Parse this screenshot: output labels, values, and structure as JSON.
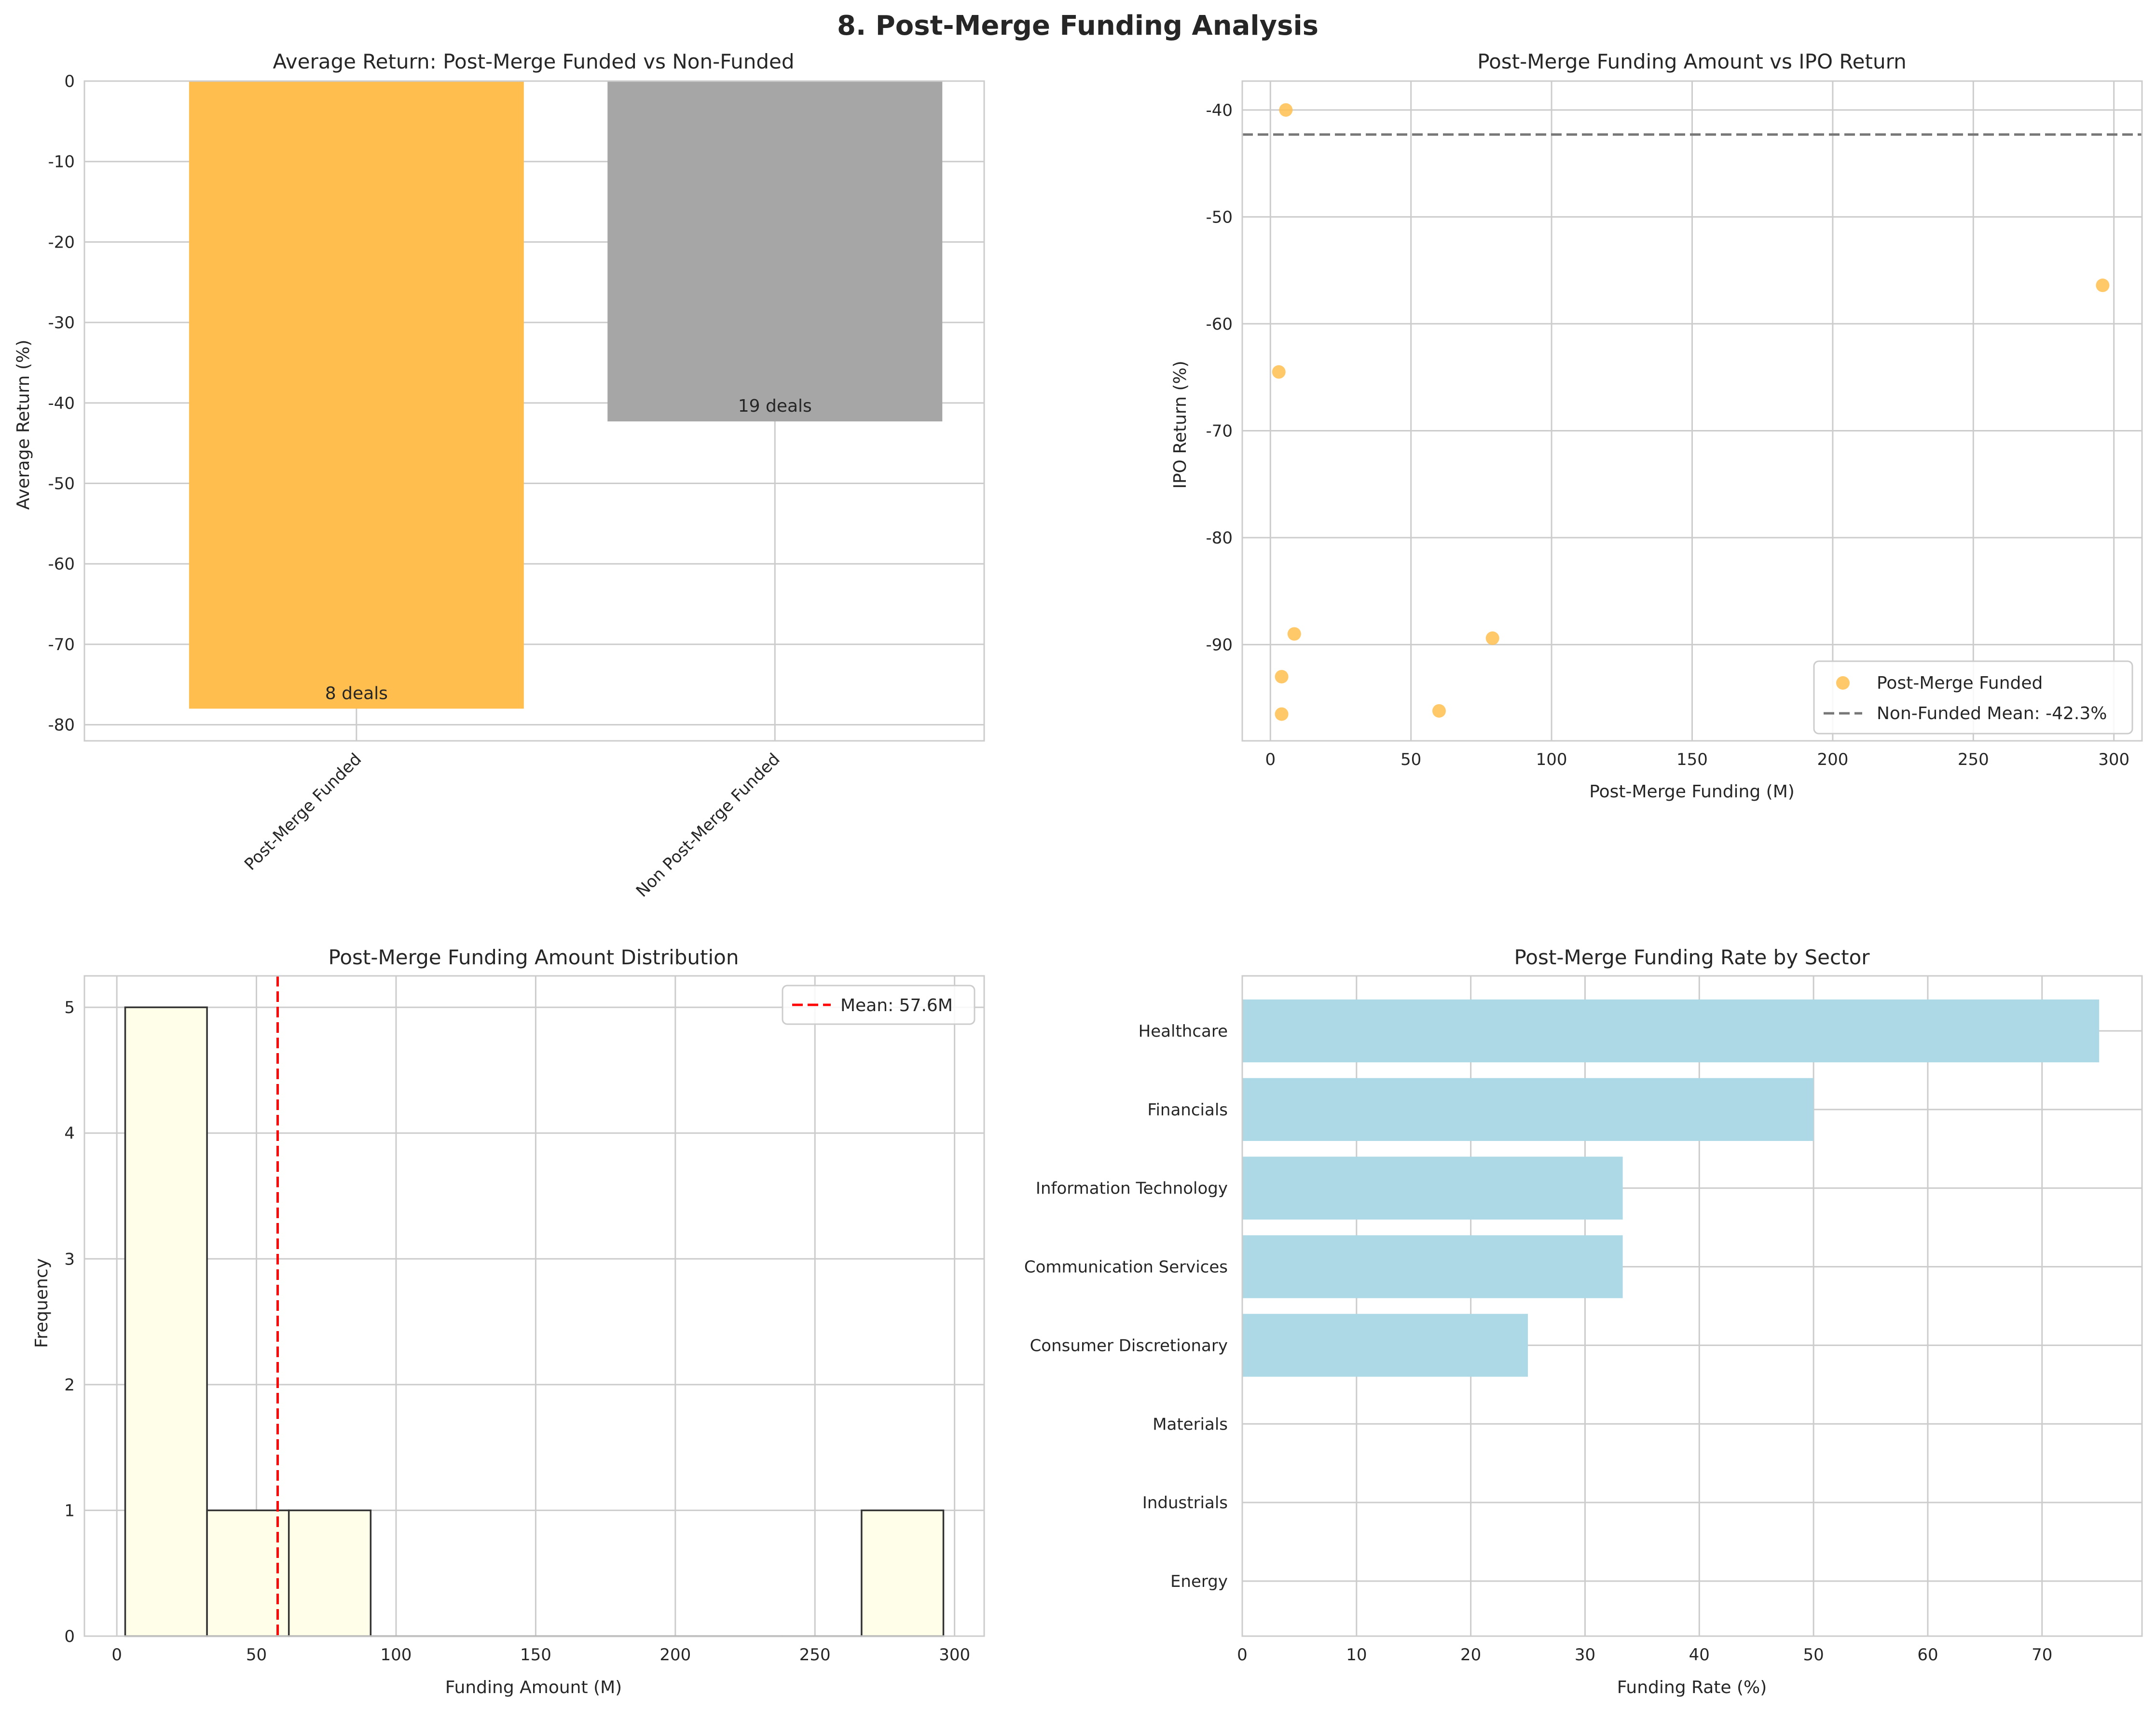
{
  "figure": {
    "title": "8. Post-Merge Funding Analysis"
  },
  "chart_data": [
    {
      "id": "avg-return",
      "type": "bar",
      "title": "Average Return: Post-Merge Funded vs Non-Funded",
      "xlabel": "",
      "ylabel": "Average Return (%)",
      "categories": [
        "Post-Merge Funded",
        "Non Post-Merge Funded"
      ],
      "values": [
        -78.0,
        -42.3
      ],
      "annotations": [
        "8 deals",
        "19 deals"
      ],
      "colors": [
        "#ffbe4d",
        "#a6a6a6"
      ],
      "ylim": [
        -82,
        0
      ],
      "yticks": [
        0,
        -10,
        -20,
        -30,
        -40,
        -50,
        -60,
        -70,
        -80
      ],
      "ytick_labels": [
        "0",
        "-10",
        "-20",
        "-30",
        "-40",
        "-50",
        "-60",
        "-70",
        "-80"
      ],
      "grid": true
    },
    {
      "id": "funding-vs-return",
      "type": "scatter",
      "title": "Post-Merge Funding Amount vs IPO Return",
      "xlabel": "Post-Merge Funding (M)",
      "ylabel": "IPO Return (%)",
      "series": [
        {
          "name": "Post-Merge Funded",
          "color": "#ffbe4d",
          "x": [
            5.5,
            3,
            8.5,
            4,
            4,
            60,
            79,
            296
          ],
          "y": [
            -40,
            -64.5,
            -89,
            -93,
            -96.5,
            -96.2,
            -89.4,
            -56.4
          ]
        }
      ],
      "hline": {
        "y": -42.3,
        "label": "Non-Funded Mean: -42.3%",
        "color": "#777777"
      },
      "xlim": [
        -10,
        310
      ],
      "ylim": [
        -99,
        -37.3
      ],
      "xticks": [
        0,
        50,
        100,
        150,
        200,
        250,
        300
      ],
      "xtick_labels": [
        "0",
        "50",
        "100",
        "150",
        "200",
        "250",
        "300"
      ],
      "yticks": [
        -40,
        -50,
        -60,
        -70,
        -80,
        -90
      ],
      "ytick_labels": [
        "-40",
        "-50",
        "-60",
        "-70",
        "-80",
        "-90"
      ],
      "legend": "lower-right",
      "grid": true
    },
    {
      "id": "funding-distribution",
      "type": "histogram",
      "title": "Post-Merge Funding Amount Distribution",
      "xlabel": "Funding Amount (M)",
      "ylabel": "Frequency",
      "bin_edges": [
        3,
        32.3,
        61.6,
        90.9,
        120.2,
        149.5,
        178.8,
        208.1,
        237.4,
        266.7,
        296
      ],
      "counts": [
        5,
        1,
        1,
        0,
        0,
        0,
        0,
        0,
        0,
        1
      ],
      "color": "#fffee8",
      "vline": {
        "x": 57.6,
        "label": "Mean: 57.6M",
        "color": "#ff0000"
      },
      "xlim": [
        -11.6,
        310.6
      ],
      "ylim": [
        0,
        5.25
      ],
      "xticks": [
        0,
        50,
        100,
        150,
        200,
        250,
        300
      ],
      "xtick_labels": [
        "0",
        "50",
        "100",
        "150",
        "200",
        "250",
        "300"
      ],
      "yticks": [
        0,
        1,
        2,
        3,
        4,
        5
      ],
      "ytick_labels": [
        "0",
        "1",
        "2",
        "3",
        "4",
        "5"
      ],
      "legend": "top-right",
      "grid": true
    },
    {
      "id": "sector-rate",
      "type": "barh",
      "title": "Post-Merge Funding Rate by Sector",
      "xlabel": "Funding Rate (%)",
      "ylabel": "",
      "categories": [
        "Healthcare",
        "Financials",
        "Information Technology",
        "Communication Services",
        "Consumer Discretionary",
        "Materials",
        "Industrials",
        "Energy"
      ],
      "values": [
        75,
        50,
        33.3,
        33.3,
        25,
        0,
        0,
        0
      ],
      "color": "#add8e6",
      "xlim": [
        0,
        78.75
      ],
      "xticks": [
        0,
        10,
        20,
        30,
        40,
        50,
        60,
        70
      ],
      "xtick_labels": [
        "0",
        "10",
        "20",
        "30",
        "40",
        "50",
        "60",
        "70"
      ],
      "grid": true
    }
  ]
}
